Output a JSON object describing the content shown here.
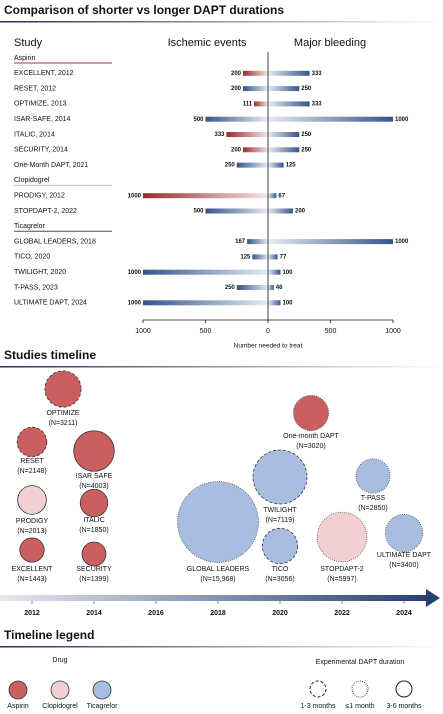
{
  "chart_data": [
    {
      "type": "diverging-bar",
      "title": "Comparison of shorter vs longer DAPT durations",
      "category_title": "Study",
      "series_titles": [
        "Ischemic events",
        "Major bleeding"
      ],
      "xlabel": "Number needed to treat",
      "xlim": [
        -1000,
        1000
      ],
      "xticks": [
        {
          "value": -1000,
          "label": "1000"
        },
        {
          "value": -500,
          "label": "500"
        },
        0,
        500,
        1000
      ],
      "bleeding_color": "#33548a",
      "groups": [
        {
          "name": "Aspirin",
          "color": "#a33a3a",
          "categories": [
            "EXCELLENT, 2012",
            "RESET, 2012",
            "OPTIMIZE, 2013",
            "ISAR-SAFE, 2014",
            "ITALIC, 2014",
            "SECURITY, 2014",
            "One-Month DAPT, 2021"
          ],
          "ischemic": [
            200,
            200,
            111,
            500,
            333,
            200,
            250
          ],
          "ischemic_colors": [
            "#9b2a2a",
            "#33548a",
            "#9b2a2a",
            "#33548a",
            "#9b2a2a",
            "#9b2a2a",
            "#33548a"
          ],
          "bleeding": [
            333,
            250,
            333,
            1000,
            250,
            250,
            125
          ]
        },
        {
          "name": "Clopidogrel",
          "color": "#e3b5b8",
          "categories": [
            "PRODIGY, 2012",
            "STOPDAPT-2, 2022"
          ],
          "ischemic": [
            1000,
            500
          ],
          "ischemic_colors": [
            "#9b2a2a",
            "#33548a"
          ],
          "bleeding": [
            67,
            200
          ]
        },
        {
          "name": "Ticagrelor",
          "color": "#33548a",
          "categories": [
            "GLOBAL LEADERS, 2018",
            "TICO, 2020",
            "TWILIGHT, 2020",
            "T-PASS, 2023",
            "ULTIMATE DAPT, 2024"
          ],
          "ischemic": [
            167,
            125,
            1000,
            250,
            1000
          ],
          "ischemic_colors": [
            "#33548a",
            "#33548a",
            "#33548a",
            "#33548a",
            "#33548a"
          ],
          "bleeding": [
            1000,
            77,
            100,
            46,
            100
          ]
        }
      ]
    },
    {
      "type": "bubble-timeline",
      "title": "Studies timeline",
      "xlim": [
        2011,
        2025
      ],
      "xticks": [
        2012,
        2014,
        2016,
        2018,
        2020,
        2022,
        2024
      ],
      "points": [
        {
          "name": "OPTIMIZE",
          "x": 2013,
          "n": 3211,
          "n_label": "(N=3211)",
          "drug": "Aspirin",
          "duration": "1-3 months"
        },
        {
          "name": "RESET",
          "x": 2012,
          "n": 2148,
          "n_label": "(N=2148)",
          "drug": "Aspirin",
          "duration": "1-3 months"
        },
        {
          "name": "ISAR SAFE",
          "x": 2014,
          "n": 4003,
          "n_label": "(N=4003)",
          "drug": "Aspirin",
          "duration": "3-6 months"
        },
        {
          "name": "PRODIGY",
          "x": 2012,
          "n": 2013,
          "n_label": "(N=2013)",
          "drug": "Clopidogrel",
          "duration": "3-6 months"
        },
        {
          "name": "ITALIC",
          "x": 2014,
          "n": 1850,
          "n_label": "(N=1850)",
          "drug": "Aspirin",
          "duration": "3-6 months"
        },
        {
          "name": "EXCELLENT",
          "x": 2012,
          "n": 1443,
          "n_label": "(N=1443)",
          "drug": "Aspirin",
          "duration": "3-6 months"
        },
        {
          "name": "SECURITY",
          "x": 2014,
          "n": 1399,
          "n_label": "(N=1399)",
          "drug": "Aspirin",
          "duration": "3-6 months"
        },
        {
          "name": "GLOBAL LEADERS",
          "x": 2018,
          "n": 15968,
          "n_label": "(N=15,968)",
          "drug": "Ticagrelor",
          "duration": "≤1 month"
        },
        {
          "name": "TWILIGHT",
          "x": 2020,
          "n": 7119,
          "n_label": "(N=7119)",
          "drug": "Ticagrelor",
          "duration": "1-3 months"
        },
        {
          "name": "TICO",
          "x": 2020,
          "n": 3056,
          "n_label": "(N=3056)",
          "drug": "Ticagrelor",
          "duration": "1-3 months"
        },
        {
          "name": "One-month DAPT",
          "x": 2021,
          "n": 3020,
          "n_label": "(N=3020)",
          "drug": "Aspirin",
          "duration": "≤1 month"
        },
        {
          "name": "STOPDAPT-2",
          "x": 2022,
          "n": 5997,
          "n_label": "(N=5997)",
          "drug": "Clopidogrel",
          "duration": "≤1 month"
        },
        {
          "name": "T-PASS",
          "x": 2023,
          "n": 2850,
          "n_label": "(N=2850)",
          "drug": "Ticagrelor",
          "duration": "≤1 month"
        },
        {
          "name": "ULTIMATE DAPT",
          "x": 2024,
          "n": 3400,
          "n_label": "(N=3400)",
          "drug": "Ticagrelor",
          "duration": "≤1 month"
        }
      ],
      "legend_title": "Timeline legend",
      "drug_title": "Drug",
      "drugs": [
        {
          "name": "Aspirin",
          "color": "#c9605f"
        },
        {
          "name": "Clopidogrel",
          "color": "#f2cfd2"
        },
        {
          "name": "Ticagrelor",
          "color": "#a9bde0"
        }
      ],
      "duration_title": "Experimental DAPT duration",
      "durations": [
        {
          "name": "1-3 months",
          "style": "dashed"
        },
        {
          "name": "≤1 month",
          "style": "dotted"
        },
        {
          "name": "3-6 months",
          "style": "solid"
        }
      ]
    }
  ]
}
